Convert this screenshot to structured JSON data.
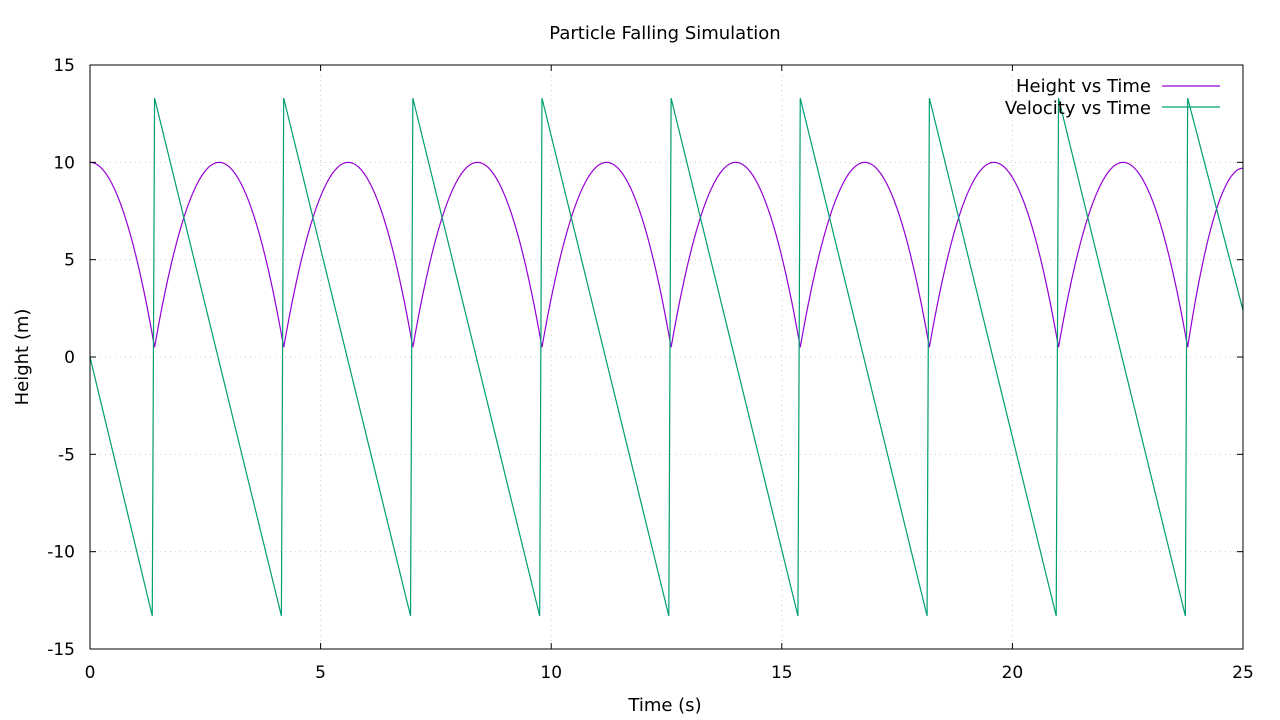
{
  "chart_data": {
    "type": "line",
    "title": "Particle Falling Simulation",
    "xlabel": "Time (s)",
    "ylabel": "Height (m)",
    "xlim": [
      0,
      25
    ],
    "ylim": [
      -15,
      15
    ],
    "xticks": [
      "0",
      "5",
      "10",
      "15",
      "20",
      "25"
    ],
    "yticks": [
      "-15",
      "-10",
      "-5",
      "0",
      "5",
      "10",
      "15"
    ],
    "grid": true,
    "legend_position": "top-right",
    "series": [
      {
        "name": "Height vs Time",
        "color": "#9400d3",
        "x": [
          0,
          1.4,
          2.8,
          4.2,
          5.6,
          7.0,
          8.4,
          9.8,
          11.2,
          12.6,
          14.0,
          15.4,
          16.8,
          18.2,
          19.6,
          21.0,
          22.4,
          23.8,
          25.0
        ],
        "y": [
          10,
          0.5,
          10,
          0.5,
          10,
          0.5,
          10,
          0.5,
          10,
          0.5,
          10,
          0.5,
          10,
          0.5,
          10,
          0.5,
          10,
          0.5,
          9.7
        ]
      },
      {
        "name": "Velocity vs Time",
        "color": "#009e73",
        "x": [
          0,
          1.35,
          1.4,
          4.15,
          4.2,
          6.95,
          7.0,
          9.75,
          9.8,
          12.55,
          12.6,
          15.35,
          15.4,
          18.15,
          18.2,
          20.95,
          21.0,
          23.75,
          23.8,
          25.0
        ],
        "y": [
          0,
          -13.3,
          13.3,
          -13.3,
          13.3,
          -13.3,
          13.3,
          -13.3,
          13.3,
          -13.3,
          13.3,
          -13.3,
          13.3,
          -13.3,
          13.3,
          -13.3,
          13.3,
          -13.3,
          13.3,
          2.4
        ]
      }
    ]
  }
}
